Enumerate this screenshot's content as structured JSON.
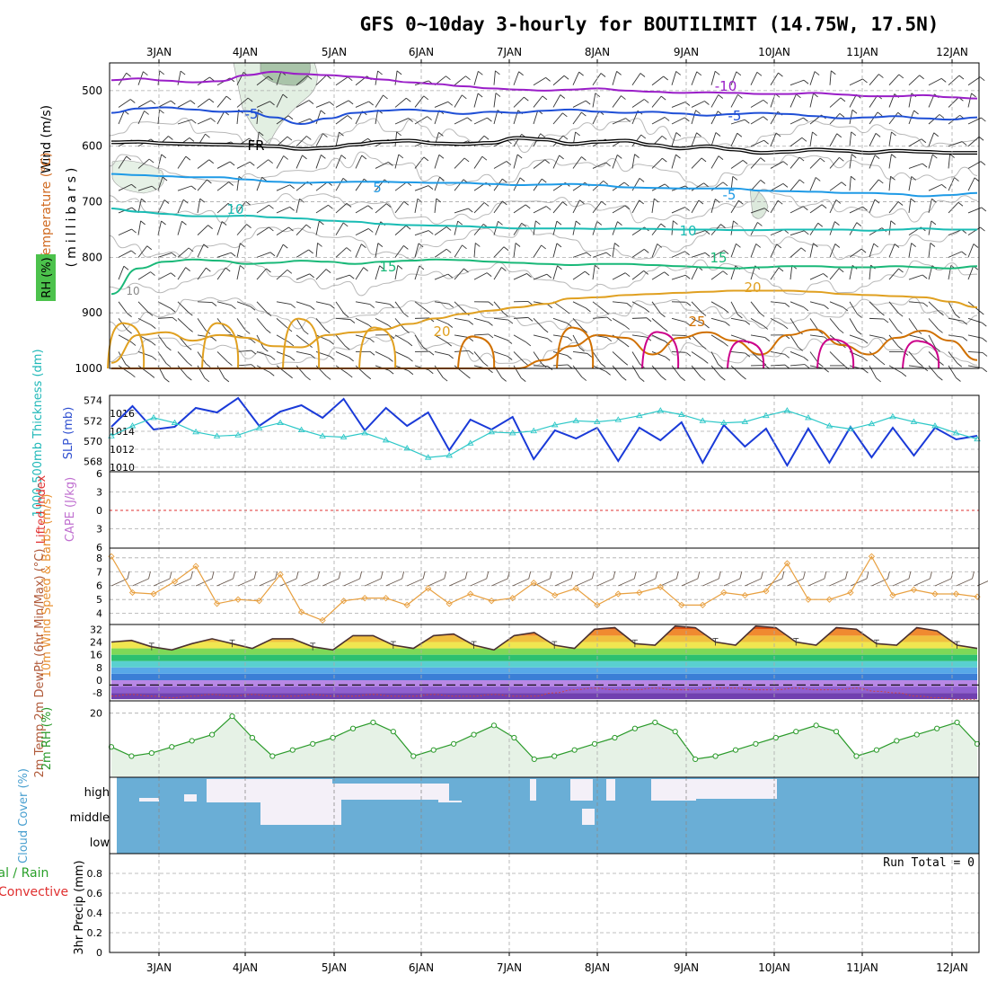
{
  "title": "GFS 0~10day 3-hourly for BOUTILIMIT (14.75W, 17.5N)",
  "dates": [
    "3JAN",
    "4JAN",
    "5JAN",
    "6JAN",
    "7JAN",
    "8JAN",
    "9JAN",
    "10JAN",
    "11JAN",
    "12JAN"
  ],
  "colors": {
    "frame": "#000000",
    "grid": "#aaaaaa",
    "purple": "#9a1ec8",
    "blue": "#1f4fd6",
    "lightblue": "#1e9ae6",
    "teal": "#19bcb4",
    "green": "#19b878",
    "orange": "#e0a020",
    "darkorange": "#d07000",
    "magenta": "#cc008a",
    "slp": "#1a3ad8",
    "thickness": "#2ec8c8",
    "wind10": "#e8a040",
    "rh": "#2a9a2a",
    "rhfill": "#e6f2e6",
    "cloud": "#6aaed6",
    "cloudclear": "#f4f0f8",
    "lifted": "#e03030"
  },
  "chart_data": [
    {
      "panel": "upper-air",
      "type": "line",
      "ylabel": "(millibars)",
      "ylabel_parts": [
        "Wind (m/s)",
        "Temperature (°C)",
        "RH (%)"
      ],
      "yticks": [
        500,
        600,
        700,
        800,
        900,
        1000
      ],
      "ylim": [
        1000,
        450
      ],
      "contour_labels": [
        "-10",
        "-5",
        "-5",
        "FR",
        "5",
        "-5",
        "10",
        "10",
        "15",
        "15",
        "20",
        "20",
        "25"
      ],
      "series": [
        {
          "name": "-10",
          "values": [
            481,
            478,
            482,
            485,
            483,
            472,
            466,
            470,
            472,
            475,
            480,
            485,
            488,
            492,
            496,
            498,
            500,
            498,
            496,
            500,
            502,
            504,
            503,
            504,
            506,
            506,
            504,
            507,
            510,
            510,
            508,
            512,
            514
          ]
        },
        {
          "name": "-5",
          "values": [
            540,
            532,
            530,
            534,
            538,
            537,
            548,
            560,
            550,
            540,
            536,
            534,
            537,
            542,
            538,
            540,
            536,
            534,
            538,
            540,
            538,
            541,
            545,
            542,
            540,
            542,
            546,
            550,
            548,
            546,
            550,
            552,
            548
          ]
        },
        {
          "name": "FR",
          "values": [
            593,
            592,
            595,
            596,
            597,
            598,
            600,
            605,
            603,
            597,
            592,
            590,
            595,
            596,
            594,
            585,
            588,
            596,
            592,
            590,
            598,
            604,
            600,
            606,
            612,
            610,
            606,
            608,
            612,
            608,
            610,
            612,
            612
          ]
        },
        {
          "name": "5",
          "values": [
            650,
            652,
            654,
            656,
            656,
            660,
            664,
            666,
            665,
            664,
            664,
            665,
            666,
            666,
            668,
            670,
            669,
            668,
            670,
            674,
            675,
            676,
            676,
            676,
            680,
            681,
            682,
            684,
            684,
            686,
            690,
            688,
            684
          ]
        },
        {
          "name": "10",
          "values": [
            712,
            718,
            722,
            726,
            726,
            725,
            728,
            730,
            734,
            736,
            740,
            742,
            743,
            744,
            746,
            748,
            748,
            748,
            749,
            748,
            749,
            750,
            750,
            751,
            751,
            750,
            750,
            750,
            752,
            750,
            748,
            750,
            750
          ]
        },
        {
          "name": "15",
          "values": [
            866,
            820,
            808,
            804,
            806,
            812,
            810,
            806,
            808,
            812,
            808,
            806,
            804,
            805,
            808,
            810,
            812,
            814,
            812,
            812,
            814,
            816,
            818,
            820,
            818,
            816,
            816,
            818,
            818,
            816,
            818,
            820,
            816
          ]
        },
        {
          "name": "20",
          "values": [
            990,
            940,
            935,
            950,
            940,
            945,
            960,
            962,
            940,
            935,
            930,
            920,
            910,
            902,
            896,
            890,
            884,
            874,
            872,
            868,
            866,
            864,
            862,
            860,
            860,
            860,
            862,
            866,
            868,
            870,
            872,
            880,
            890
          ]
        },
        {
          "name": "25",
          "values": [
            1000,
            1000,
            1000,
            1000,
            1000,
            1000,
            1000,
            1000,
            1000,
            1000,
            1000,
            1000,
            1000,
            1000,
            1000,
            1000,
            985,
            960,
            940,
            945,
            975,
            945,
            935,
            950,
            975,
            940,
            930,
            958,
            975,
            945,
            932,
            950,
            985
          ]
        }
      ]
    },
    {
      "panel": "slp-thickness",
      "type": "line",
      "ylabel_left": "1000-500mb Thickness (dm)",
      "ylabel_right": "SLP (mb)",
      "yticks_left": [
        568,
        570,
        572,
        574
      ],
      "yticks_right": [
        1010,
        1012,
        1014,
        1016
      ],
      "series": [
        {
          "name": "SLP (mb)",
          "values": [
            1014.5,
            1016.8,
            1014.2,
            1014.5,
            1016.6,
            1016.1,
            1017.7,
            1014.6,
            1016.2,
            1016.9,
            1015.5,
            1017.6,
            1014.1,
            1016.6,
            1014.6,
            1016.1,
            1011.9,
            1015.3,
            1014.2,
            1015.6,
            1010.9,
            1014.1,
            1013.2,
            1014.4,
            1010.7,
            1014.4,
            1013.0,
            1015.0,
            1010.5,
            1014.7,
            1012.3,
            1014.3,
            1010.2,
            1014.3,
            1010.5,
            1014.5,
            1011.1,
            1014.4,
            1011.3,
            1014.4,
            1013.1,
            1013.5
          ]
        },
        {
          "name": "1000-500mb Thickness (dm)",
          "values": [
            570.5,
            571.5,
            572.3,
            571.8,
            570.9,
            570.5,
            570.6,
            571.3,
            571.8,
            571.1,
            570.5,
            570.4,
            570.8,
            570.1,
            569.3,
            568.4,
            568.6,
            569.8,
            570.9,
            570.8,
            571.0,
            571.6,
            572.0,
            571.9,
            572.1,
            572.5,
            573.0,
            572.6,
            572.0,
            571.8,
            571.9,
            572.5,
            573.0,
            572.3,
            571.5,
            571.2,
            571.7,
            572.4,
            571.9,
            571.5,
            570.8,
            570.2
          ]
        }
      ]
    },
    {
      "panel": "cape-lifted",
      "type": "line",
      "ylabel_left": "Lifted Index",
      "ylabel_right": "CAPE (J/kg)",
      "yticks": [
        "6",
        "3",
        "0",
        "3",
        "6"
      ],
      "series": [
        {
          "name": "Lifted Index",
          "values": [
            0
          ]
        }
      ]
    },
    {
      "panel": "wind10m",
      "type": "line",
      "ylabel": "10m Wind Speed & Barbs (m/s)",
      "yticks": [
        4,
        5,
        6,
        7,
        8
      ],
      "series": [
        {
          "name": "10m Wind Speed",
          "values": [
            8.1,
            5.5,
            5.4,
            6.3,
            7.4,
            4.7,
            5.0,
            4.9,
            6.8,
            4.1,
            3.5,
            4.9,
            5.1,
            5.1,
            4.6,
            5.8,
            4.7,
            5.4,
            4.9,
            5.1,
            6.2,
            5.3,
            5.8,
            4.6,
            5.4,
            5.5,
            5.9,
            4.6,
            4.6,
            5.5,
            5.3,
            5.6,
            7.6,
            5.0,
            5.0,
            5.5,
            8.1,
            5.3,
            5.7,
            5.4,
            5.4,
            5.2
          ]
        }
      ]
    },
    {
      "panel": "temperature",
      "type": "area",
      "ylabel": "2m Temp 2m DewPt (6hr Min/Max) (°C)",
      "yticks": [
        -8,
        0,
        8,
        16,
        24,
        32
      ],
      "series": [
        {
          "name": "2m Temp",
          "values": [
            24,
            25,
            21,
            19,
            23,
            26,
            23,
            20,
            26,
            26,
            21,
            19,
            28,
            28,
            22,
            20,
            28,
            29,
            22,
            19,
            28,
            30,
            22,
            20,
            32,
            33,
            23,
            22,
            34,
            33,
            24,
            22,
            34,
            33,
            24,
            22,
            33,
            32,
            23,
            22,
            33,
            31,
            22,
            20
          ]
        },
        {
          "name": "2m DewPt",
          "values": [
            -10,
            -9,
            -10,
            -11,
            -10,
            -9,
            -10,
            -9,
            -10,
            -10,
            -9,
            -10,
            -10,
            -9,
            -10,
            -10,
            -9,
            -10,
            -10,
            -9,
            -10,
            -10,
            -8,
            -6,
            -5,
            -6,
            -6,
            -5,
            -6,
            -6,
            -5,
            -5,
            -6,
            -6,
            -5,
            -6,
            -6,
            -5,
            -7,
            -8,
            -10,
            -11,
            -12,
            -12
          ]
        }
      ]
    },
    {
      "panel": "rh2m",
      "type": "area",
      "ylabel": "2m RH (%)",
      "yticks": [
        20
      ],
      "series": [
        {
          "name": "2m RH",
          "values": [
            9,
            6,
            7,
            9,
            11,
            13,
            19,
            12,
            6,
            8,
            10,
            12,
            15,
            17,
            14,
            6,
            8,
            10,
            13,
            16,
            12,
            5,
            6,
            8,
            10,
            12,
            15,
            17,
            14,
            5,
            6,
            8,
            10,
            12,
            14,
            16,
            14,
            6,
            8,
            11,
            13,
            15,
            17,
            10
          ]
        }
      ]
    },
    {
      "panel": "cloud",
      "type": "heatmap",
      "ylabel": "Cloud Cover (%)",
      "levels": [
        "high",
        "middle",
        "low"
      ],
      "series": [
        {
          "name": "high",
          "values": [
            0,
            0,
            1,
            1,
            1,
            1,
            0,
            0,
            0,
            0,
            0,
            0,
            0,
            1,
            1,
            0,
            1,
            1,
            1,
            0
          ]
        },
        {
          "name": "middle",
          "values": [
            0,
            0,
            0,
            0,
            1,
            1,
            0,
            0,
            0,
            0,
            0,
            0,
            0,
            0,
            1,
            0,
            0,
            0,
            0,
            0
          ]
        },
        {
          "name": "low",
          "values": [
            0,
            0,
            0,
            0,
            0,
            0,
            0,
            0,
            0,
            0,
            0,
            0,
            0,
            0,
            0,
            0,
            0,
            0,
            0,
            0
          ]
        }
      ]
    },
    {
      "panel": "precip",
      "type": "bar",
      "ylabel": "3hr Precip (mm)",
      "ylabel_left": [
        "tal / Rain",
        "Convective"
      ],
      "yticks": [
        0,
        0.2,
        0.4,
        0.6,
        0.8
      ],
      "ylim": [
        0,
        1
      ],
      "annotation": "Run Total = 0",
      "values": [
        0
      ]
    }
  ]
}
